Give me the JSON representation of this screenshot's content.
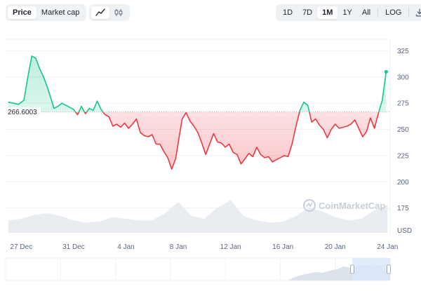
{
  "toolbar": {
    "metric_tabs": [
      {
        "label": "Price",
        "active": true
      },
      {
        "label": "Market cap",
        "active": false
      }
    ],
    "chart_types": [
      {
        "icon": "line-chart-icon",
        "active": true
      },
      {
        "icon": "candlestick-icon",
        "active": false
      }
    ],
    "ranges": [
      {
        "label": "1D",
        "active": false
      },
      {
        "label": "7D",
        "active": false
      },
      {
        "label": "1M",
        "active": true
      },
      {
        "label": "1Y",
        "active": false
      },
      {
        "label": "All",
        "active": false
      }
    ],
    "log_label": "LOG",
    "download_icon": "download-icon"
  },
  "colors": {
    "up": "#16c784",
    "down": "#ea3943",
    "grid": "#eff2f5",
    "text": "#58667e",
    "volume": "#e9ecf0"
  },
  "watermark": "CoinMarketCap",
  "chart_data": {
    "type": "line",
    "currency_label": "USD",
    "baseline_label": "266.6003",
    "baseline": 266.6,
    "ylim": [
      150,
      340
    ],
    "yticks": [
      175,
      200,
      225,
      250,
      275,
      300,
      325
    ],
    "xticks": [
      {
        "label": "27 Dec",
        "day": 1
      },
      {
        "label": "31 Dec",
        "day": 5
      },
      {
        "label": "4 Jan",
        "day": 9
      },
      {
        "label": "8 Jan",
        "day": 13
      },
      {
        "label": "12 Jan",
        "day": 17
      },
      {
        "label": "16 Jan",
        "day": 21
      },
      {
        "label": "20 Jan",
        "day": 25
      },
      {
        "label": "24 Jan",
        "day": 29
      }
    ],
    "xlim": [
      -0.2,
      29.2
    ],
    "series": [
      {
        "x": [
          0,
          0.4,
          0.8,
          1.2,
          1.5,
          1.8,
          2.1,
          2.4,
          2.7,
          3.0,
          3.2,
          3.5,
          3.8,
          4.1,
          4.4,
          4.7,
          5.0,
          5.3,
          5.6,
          5.9,
          6.2,
          6.5,
          6.8,
          7.1,
          7.4,
          7.7,
          8.0,
          8.3,
          8.6,
          8.9,
          9.2,
          9.5,
          9.8,
          10.1,
          10.4,
          10.7,
          11.0,
          11.3,
          11.6,
          11.9,
          12.2,
          12.5,
          12.8,
          13.1,
          13.3,
          13.6,
          13.9,
          14.2,
          14.5,
          14.8,
          15.1,
          15.4,
          15.7,
          16.0,
          16.3,
          16.6,
          16.9,
          17.2,
          17.5,
          17.8,
          18.1,
          18.4,
          18.7,
          19.0,
          19.3,
          19.6,
          19.9,
          20.2,
          20.5,
          20.8,
          21.1,
          21.4,
          21.7,
          22.0,
          22.3,
          22.6,
          22.9,
          23.2,
          23.5,
          23.8,
          24.1,
          24.4,
          24.7,
          25.0,
          25.3,
          25.6,
          25.9,
          26.2,
          26.5,
          26.8,
          27.1,
          27.4,
          27.7,
          28.0,
          28.3,
          28.6,
          28.9
        ],
        "y": [
          276,
          275,
          274,
          278,
          300,
          320,
          318,
          308,
          300,
          290,
          282,
          270,
          272,
          275,
          273,
          271,
          269,
          264,
          272,
          265,
          270,
          268,
          277,
          269,
          264,
          262,
          253,
          255,
          252,
          256,
          251,
          255,
          260,
          247,
          244,
          243,
          245,
          236,
          236,
          229,
          223,
          212,
          222,
          245,
          260,
          266,
          258,
          253,
          247,
          237,
          226,
          236,
          246,
          238,
          237,
          233,
          236,
          228,
          226,
          217,
          222,
          227,
          224,
          233,
          226,
          223,
          224,
          219,
          221,
          223,
          225,
          224,
          236,
          253,
          268,
          276,
          273,
          257,
          260,
          254,
          250,
          242,
          250,
          255,
          251,
          252,
          253,
          255,
          259,
          251,
          243,
          248,
          261,
          251,
          265,
          278,
          305
        ]
      }
    ],
    "volume": {
      "x": [
        0,
        1,
        2,
        3,
        4,
        5,
        6,
        7,
        8,
        9,
        10,
        11,
        12,
        13,
        14,
        15,
        16,
        17,
        18,
        19,
        20,
        21,
        22,
        23,
        24,
        25,
        26,
        27,
        28,
        29
      ],
      "values": [
        0.22,
        0.25,
        0.32,
        0.35,
        0.3,
        0.22,
        0.18,
        0.2,
        0.28,
        0.25,
        0.22,
        0.22,
        0.35,
        0.55,
        0.3,
        0.25,
        0.45,
        0.58,
        0.3,
        0.22,
        0.18,
        0.2,
        0.3,
        0.45,
        0.38,
        0.28,
        0.22,
        0.25,
        0.4,
        0.5
      ]
    }
  }
}
